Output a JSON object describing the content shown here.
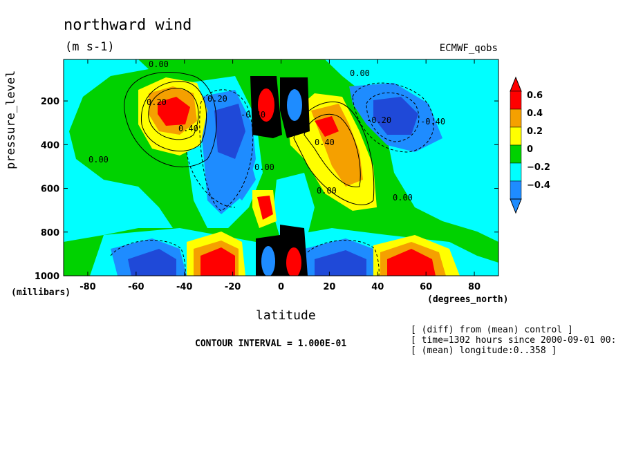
{
  "title": "northward wind",
  "units": "(m s-1)",
  "dataset": "ECMWF_qobs",
  "axis": {
    "ylabel": "pressure_level",
    "yunits": "(millibars)",
    "xlabel": "latitude",
    "xunits": "(degrees_north)"
  },
  "contour_interval": "CONTOUR INTERVAL = 1.000E-01",
  "notes": [
    "[ (diff) from (mean) control ]",
    "[ time=1302 hours since 2000-09-01 00:",
    "[ (mean) longitude:0..358 ]"
  ],
  "contour_labels": [
    "0.00",
    "0.00",
    "0.20",
    "-0.40",
    "0.40",
    "0.00",
    "-0.20",
    "0.40",
    "0.00",
    "0.00",
    "0.00",
    "0.20",
    "-0.40"
  ],
  "colors": {
    "red": "#ff0000",
    "orange": "#f5a000",
    "yellow": "#ffff00",
    "green": "#00d200",
    "cyan": "#00ffff",
    "blue": "#1e8cff",
    "dark_blue": "#1f49d8"
  },
  "chart_data": {
    "type": "heatmap",
    "title": "northward wind",
    "xlabel": "latitude",
    "ylabel": "pressure_level",
    "xlim": [
      -90,
      90
    ],
    "ylim": [
      1000,
      10
    ],
    "x_ticks": [
      -80,
      -60,
      -40,
      -20,
      0,
      20,
      40,
      60,
      80
    ],
    "y_ticks": [
      200,
      400,
      600,
      800,
      1000
    ],
    "colorbar": {
      "levels": [
        0.6,
        0.4,
        0.2,
        0,
        -0.2,
        -0.4
      ],
      "labels": [
        "0.6",
        "0.4",
        "0.2",
        "0",
        "−0.2",
        "−0.4"
      ],
      "colors": [
        "#ff0000",
        "#f5a000",
        "#ffff00",
        "#00d200",
        "#00ffff",
        "#1e8cff"
      ]
    }
  }
}
